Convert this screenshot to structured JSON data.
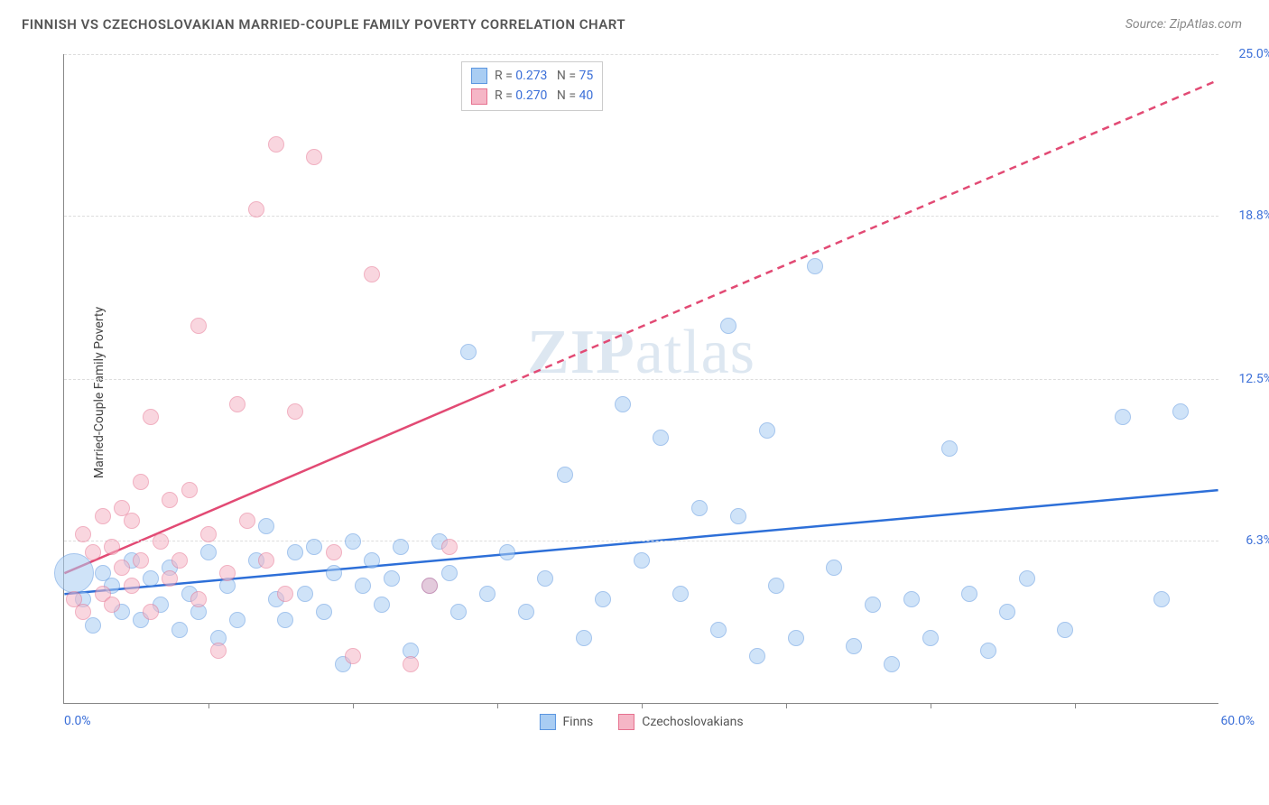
{
  "header": {
    "title": "FINNISH VS CZECHOSLOVAKIAN MARRIED-COUPLE FAMILY POVERTY CORRELATION CHART",
    "source": "Source: ZipAtlas.com"
  },
  "chart": {
    "type": "scatter",
    "ylabel": "Married-Couple Family Poverty",
    "watermark_text": "ZIPatlas",
    "background_color": "#ffffff",
    "grid_color": "#dddddd",
    "axis_color": "#888888",
    "xlim": [
      0,
      60
    ],
    "ylim": [
      0,
      25
    ],
    "x_start_label": "0.0%",
    "x_end_label": "60.0%",
    "x_label_color": "#3b6fd8",
    "y_ticks": [
      {
        "value": 6.3,
        "label": "6.3%",
        "color": "#3b6fd8"
      },
      {
        "value": 12.5,
        "label": "12.5%",
        "color": "#3b6fd8"
      },
      {
        "value": 18.8,
        "label": "18.8%",
        "color": "#3b6fd8"
      },
      {
        "value": 25.0,
        "label": "25.0%",
        "color": "#3b6fd8"
      }
    ],
    "x_tick_positions": [
      7.5,
      15,
      22.5,
      30,
      37.5,
      45,
      52.5
    ],
    "series": [
      {
        "key": "finns",
        "label": "Finns",
        "fill": "#a9cdf3",
        "stroke": "#5b96e0",
        "fill_opacity": 0.55,
        "marker_radius": 9,
        "R": "0.273",
        "N": "75",
        "trend": {
          "color": "#2d6fd8",
          "width": 2.5,
          "x1": 0,
          "y1": 4.2,
          "x2": 60,
          "y2": 8.2,
          "solid_until_x": 60,
          "dash_pattern": "6 6"
        },
        "points": [
          {
            "x": 0.5,
            "y": 5.0,
            "r": 22
          },
          {
            "x": 1,
            "y": 4
          },
          {
            "x": 1.5,
            "y": 3
          },
          {
            "x": 2,
            "y": 5
          },
          {
            "x": 2.5,
            "y": 4.5
          },
          {
            "x": 3,
            "y": 3.5
          },
          {
            "x": 3.5,
            "y": 5.5
          },
          {
            "x": 4,
            "y": 3.2
          },
          {
            "x": 4.5,
            "y": 4.8
          },
          {
            "x": 5,
            "y": 3.8
          },
          {
            "x": 5.5,
            "y": 5.2
          },
          {
            "x": 6,
            "y": 2.8
          },
          {
            "x": 6.5,
            "y": 4.2
          },
          {
            "x": 7,
            "y": 3.5
          },
          {
            "x": 7.5,
            "y": 5.8
          },
          {
            "x": 8,
            "y": 2.5
          },
          {
            "x": 8.5,
            "y": 4.5
          },
          {
            "x": 9,
            "y": 3.2
          },
          {
            "x": 10,
            "y": 5.5
          },
          {
            "x": 10.5,
            "y": 6.8
          },
          {
            "x": 11,
            "y": 4.0
          },
          {
            "x": 11.5,
            "y": 3.2
          },
          {
            "x": 12,
            "y": 5.8
          },
          {
            "x": 12.5,
            "y": 4.2
          },
          {
            "x": 13,
            "y": 6.0
          },
          {
            "x": 13.5,
            "y": 3.5
          },
          {
            "x": 14,
            "y": 5.0
          },
          {
            "x": 14.5,
            "y": 1.5
          },
          {
            "x": 15,
            "y": 6.2
          },
          {
            "x": 15.5,
            "y": 4.5
          },
          {
            "x": 16,
            "y": 5.5
          },
          {
            "x": 16.5,
            "y": 3.8
          },
          {
            "x": 17,
            "y": 4.8
          },
          {
            "x": 17.5,
            "y": 6.0
          },
          {
            "x": 18,
            "y": 2.0
          },
          {
            "x": 19,
            "y": 4.5
          },
          {
            "x": 19.5,
            "y": 6.2
          },
          {
            "x": 20,
            "y": 5.0
          },
          {
            "x": 20.5,
            "y": 3.5
          },
          {
            "x": 21,
            "y": 13.5
          },
          {
            "x": 22,
            "y": 4.2
          },
          {
            "x": 23,
            "y": 5.8
          },
          {
            "x": 24,
            "y": 3.5
          },
          {
            "x": 25,
            "y": 4.8
          },
          {
            "x": 26,
            "y": 8.8
          },
          {
            "x": 27,
            "y": 2.5
          },
          {
            "x": 28,
            "y": 4.0
          },
          {
            "x": 29,
            "y": 11.5
          },
          {
            "x": 30,
            "y": 5.5
          },
          {
            "x": 31,
            "y": 10.2
          },
          {
            "x": 32,
            "y": 4.2
          },
          {
            "x": 33,
            "y": 7.5
          },
          {
            "x": 34,
            "y": 2.8
          },
          {
            "x": 34.5,
            "y": 14.5
          },
          {
            "x": 35,
            "y": 7.2
          },
          {
            "x": 36,
            "y": 1.8
          },
          {
            "x": 36.5,
            "y": 10.5
          },
          {
            "x": 37,
            "y": 4.5
          },
          {
            "x": 38,
            "y": 2.5
          },
          {
            "x": 39,
            "y": 16.8
          },
          {
            "x": 40,
            "y": 5.2
          },
          {
            "x": 41,
            "y": 2.2
          },
          {
            "x": 42,
            "y": 3.8
          },
          {
            "x": 43,
            "y": 1.5
          },
          {
            "x": 44,
            "y": 4.0
          },
          {
            "x": 45,
            "y": 2.5
          },
          {
            "x": 46,
            "y": 9.8
          },
          {
            "x": 47,
            "y": 4.2
          },
          {
            "x": 48,
            "y": 2.0
          },
          {
            "x": 49,
            "y": 3.5
          },
          {
            "x": 50,
            "y": 4.8
          },
          {
            "x": 52,
            "y": 2.8
          },
          {
            "x": 55,
            "y": 11.0
          },
          {
            "x": 57,
            "y": 4.0
          },
          {
            "x": 58,
            "y": 11.2
          }
        ]
      },
      {
        "key": "czechoslovakians",
        "label": "Czechoslovakians",
        "fill": "#f5b6c6",
        "stroke": "#e6718f",
        "fill_opacity": 0.55,
        "marker_radius": 9,
        "R": "0.270",
        "N": "40",
        "trend": {
          "color": "#e24a74",
          "width": 2.5,
          "x1": 0,
          "y1": 5.0,
          "x2": 60,
          "y2": 24.0,
          "solid_until_x": 22,
          "dash_pattern": "8 6"
        },
        "points": [
          {
            "x": 0.5,
            "y": 4.0
          },
          {
            "x": 1,
            "y": 6.5
          },
          {
            "x": 1,
            "y": 3.5
          },
          {
            "x": 1.5,
            "y": 5.8
          },
          {
            "x": 2,
            "y": 7.2
          },
          {
            "x": 2,
            "y": 4.2
          },
          {
            "x": 2.5,
            "y": 6.0
          },
          {
            "x": 2.5,
            "y": 3.8
          },
          {
            "x": 3,
            "y": 7.5
          },
          {
            "x": 3,
            "y": 5.2
          },
          {
            "x": 3.5,
            "y": 4.5
          },
          {
            "x": 3.5,
            "y": 7.0
          },
          {
            "x": 4,
            "y": 8.5
          },
          {
            "x": 4,
            "y": 5.5
          },
          {
            "x": 4.5,
            "y": 11.0
          },
          {
            "x": 4.5,
            "y": 3.5
          },
          {
            "x": 5,
            "y": 6.2
          },
          {
            "x": 5.5,
            "y": 7.8
          },
          {
            "x": 5.5,
            "y": 4.8
          },
          {
            "x": 6,
            "y": 5.5
          },
          {
            "x": 6.5,
            "y": 8.2
          },
          {
            "x": 7,
            "y": 4.0
          },
          {
            "x": 7,
            "y": 14.5
          },
          {
            "x": 7.5,
            "y": 6.5
          },
          {
            "x": 8,
            "y": 2.0
          },
          {
            "x": 8.5,
            "y": 5.0
          },
          {
            "x": 9,
            "y": 11.5
          },
          {
            "x": 9.5,
            "y": 7.0
          },
          {
            "x": 10,
            "y": 19.0
          },
          {
            "x": 10.5,
            "y": 5.5
          },
          {
            "x": 11,
            "y": 21.5
          },
          {
            "x": 11.5,
            "y": 4.2
          },
          {
            "x": 12,
            "y": 11.2
          },
          {
            "x": 13,
            "y": 21.0
          },
          {
            "x": 14,
            "y": 5.8
          },
          {
            "x": 15,
            "y": 1.8
          },
          {
            "x": 16,
            "y": 16.5
          },
          {
            "x": 18,
            "y": 1.5
          },
          {
            "x": 19,
            "y": 4.5
          },
          {
            "x": 20,
            "y": 6.0
          }
        ]
      }
    ],
    "legend_top": {
      "R_prefix": "R = ",
      "N_prefix": "N = ",
      "value_color": "#3b6fd8",
      "text_color": "#666666"
    },
    "legend_bottom": {
      "items": [
        {
          "label": "Finns",
          "fill": "#a9cdf3",
          "stroke": "#5b96e0"
        },
        {
          "label": "Czechoslovakians",
          "fill": "#f5b6c6",
          "stroke": "#e6718f"
        }
      ]
    }
  }
}
